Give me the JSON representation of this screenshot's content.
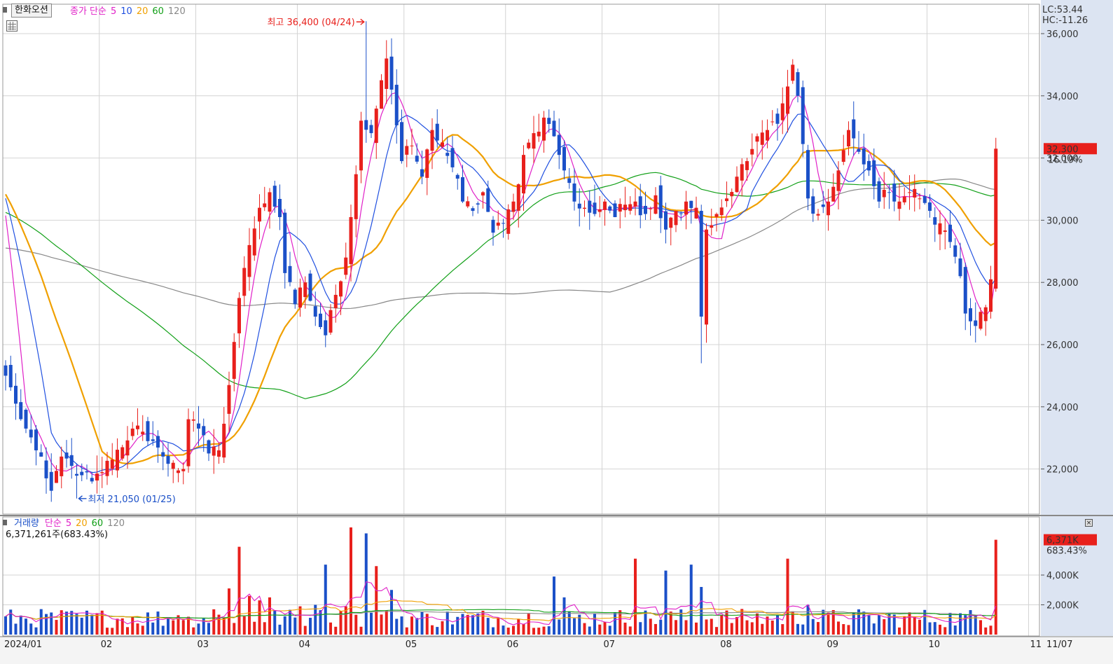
{
  "price_panel": {
    "stock_name": "한화오션",
    "legend": {
      "prefix": "종가 단순",
      "periods": [
        "5",
        "10",
        "20",
        "60",
        "120"
      ]
    },
    "lc_label": "LC:53.44",
    "hc_label": "HC:-11.26",
    "high_annotation": "최고 36,400 (04/24)",
    "low_annotation": "최저 21,050 (01/25)",
    "current_price_label": "32,300",
    "current_change_label": "16.19%"
  },
  "volume_panel": {
    "legend": {
      "title": "거래량",
      "prefix": "단순",
      "periods": [
        "5",
        "20",
        "60",
        "120"
      ]
    },
    "summary": "6,371,261주(683.43%)",
    "current_volume_label": "6,371K",
    "current_ratio_label": "683.43%"
  },
  "colors": {
    "up": "#e8201c",
    "down": "#1b50c8",
    "ma5": "#e020c8",
    "ma10": "#2050e0",
    "ma20": "#f0a000",
    "ma60": "#12a018",
    "ma120": "#888888",
    "axis_bg": "#dce4f2",
    "grid": "#d4d4d4"
  },
  "chart_data": [
    {
      "type": "candlestick",
      "ylim": [
        20500,
        37000
      ],
      "y_ticks": [
        22000,
        24000,
        26000,
        28000,
        30000,
        32000,
        34000,
        36000
      ],
      "y_tick_labels": [
        "22,000",
        "24,000",
        "26,000",
        "28,000",
        "30,000",
        "32,000",
        "34,000",
        "36,000"
      ],
      "x_tick_labels": [
        "2024/01",
        "02",
        "03",
        "04",
        "05",
        "06",
        "07",
        "08",
        "09",
        "10",
        "11",
        "11/07"
      ],
      "x_tick_index": [
        0,
        19,
        38,
        58,
        79,
        99,
        118,
        141,
        162,
        182,
        202
      ],
      "anchors": [
        [
          0,
          25000
        ],
        [
          2,
          24100
        ],
        [
          4,
          23300
        ],
        [
          6,
          22600
        ],
        [
          8,
          21700
        ],
        [
          9,
          21300
        ],
        [
          11,
          22400
        ],
        [
          13,
          22100
        ],
        [
          15,
          21800
        ],
        [
          17,
          21600
        ],
        [
          19,
          21900
        ],
        [
          21,
          22300
        ],
        [
          23,
          22700
        ],
        [
          25,
          23300
        ],
        [
          27,
          23200
        ],
        [
          29,
          22900
        ],
        [
          31,
          22400
        ],
        [
          33,
          22200
        ],
        [
          35,
          22000
        ],
        [
          36,
          23600
        ],
        [
          38,
          23300
        ],
        [
          40,
          22500
        ],
        [
          42,
          22600
        ],
        [
          44,
          24700
        ],
        [
          46,
          27500
        ],
        [
          48,
          29200
        ],
        [
          50,
          30400
        ],
        [
          52,
          30900
        ],
        [
          54,
          30100
        ],
        [
          55,
          28300
        ],
        [
          57,
          27300
        ],
        [
          59,
          28000
        ],
        [
          61,
          26900
        ],
        [
          63,
          26300
        ],
        [
          65,
          27600
        ],
        [
          67,
          28800
        ],
        [
          68,
          30100
        ],
        [
          70,
          33200
        ],
        [
          72,
          32800
        ],
        [
          74,
          34500
        ],
        [
          75,
          35200
        ],
        [
          76,
          34200
        ],
        [
          78,
          31900
        ],
        [
          80,
          32400
        ],
        [
          82,
          31400
        ],
        [
          84,
          32900
        ],
        [
          86,
          32500
        ],
        [
          88,
          31700
        ],
        [
          90,
          30600
        ],
        [
          92,
          30300
        ],
        [
          94,
          30900
        ],
        [
          96,
          29600
        ],
        [
          98,
          29900
        ],
        [
          100,
          30600
        ],
        [
          102,
          32100
        ],
        [
          104,
          32800
        ],
        [
          106,
          33300
        ],
        [
          108,
          32700
        ],
        [
          110,
          31600
        ],
        [
          112,
          30600
        ],
        [
          114,
          30400
        ],
        [
          116,
          30200
        ],
        [
          118,
          30600
        ],
        [
          120,
          30100
        ],
        [
          122,
          30500
        ],
        [
          124,
          30600
        ],
        [
          126,
          30200
        ],
        [
          128,
          30800
        ],
        [
          130,
          29700
        ],
        [
          132,
          30300
        ],
        [
          134,
          30600
        ],
        [
          136,
          30400
        ],
        [
          137,
          26900
        ],
        [
          138,
          29700
        ],
        [
          140,
          30200
        ],
        [
          142,
          30700
        ],
        [
          144,
          31400
        ],
        [
          146,
          31900
        ],
        [
          148,
          32700
        ],
        [
          150,
          32900
        ],
        [
          152,
          33100
        ],
        [
          154,
          34300
        ],
        [
          155,
          35000
        ],
        [
          156,
          34000
        ],
        [
          158,
          30700
        ],
        [
          160,
          30200
        ],
        [
          162,
          30600
        ],
        [
          164,
          31600
        ],
        [
          166,
          32900
        ],
        [
          168,
          32200
        ],
        [
          170,
          31600
        ],
        [
          172,
          30600
        ],
        [
          174,
          30900
        ],
        [
          176,
          30600
        ],
        [
          178,
          30900
        ],
        [
          180,
          30700
        ],
        [
          182,
          30300
        ],
        [
          184,
          29900
        ],
        [
          186,
          29300
        ],
        [
          188,
          28200
        ],
        [
          189,
          27000
        ],
        [
          191,
          26600
        ],
        [
          193,
          27200
        ],
        [
          194,
          28100
        ],
        [
          195,
          32300
        ]
      ],
      "high_annotation": {
        "index": 71,
        "price": 36400
      },
      "low_annotation": {
        "index": 14,
        "price": 21050
      },
      "last_price": 32300,
      "moving_averages": [
        5,
        10,
        20,
        60,
        120
      ]
    },
    {
      "type": "bar",
      "name": "volume",
      "ylim": [
        0,
        7000000
      ],
      "y_ticks": [
        2000000,
        4000000
      ],
      "y_tick_labels": [
        "2,000K",
        "4,000K"
      ],
      "spikes": [
        [
          34,
          1300000
        ],
        [
          36,
          1200000
        ],
        [
          41,
          1700000
        ],
        [
          44,
          3100000
        ],
        [
          46,
          5900000
        ],
        [
          48,
          2600000
        ],
        [
          50,
          2300000
        ],
        [
          52,
          2500000
        ],
        [
          58,
          1900000
        ],
        [
          61,
          2000000
        ],
        [
          63,
          4700000
        ],
        [
          67,
          1900000
        ],
        [
          68,
          7200000
        ],
        [
          71,
          6800000
        ],
        [
          73,
          4600000
        ],
        [
          76,
          3000000
        ],
        [
          108,
          3900000
        ],
        [
          110,
          2500000
        ],
        [
          124,
          5100000
        ],
        [
          130,
          4300000
        ],
        [
          135,
          4700000
        ],
        [
          137,
          3200000
        ],
        [
          154,
          5100000
        ],
        [
          158,
          2000000
        ],
        [
          195,
          6371261
        ]
      ],
      "last_volume": 6371261,
      "moving_averages": [
        5,
        20,
        60,
        120
      ]
    }
  ]
}
